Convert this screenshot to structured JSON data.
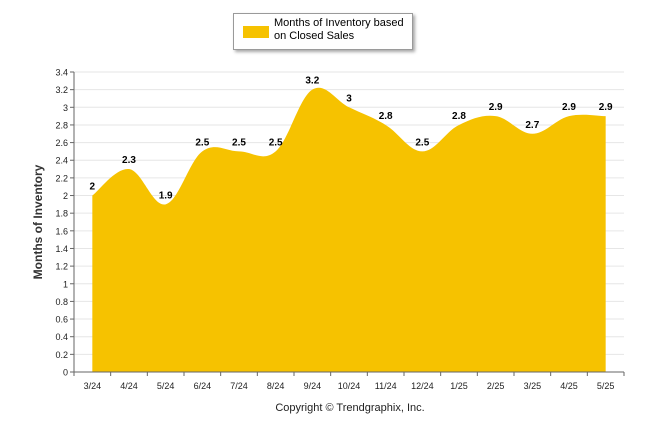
{
  "legend": {
    "label": "Months of Inventory based on Closed Sales"
  },
  "footer": {
    "copyright": "Copyright © Trendgraphix, Inc."
  },
  "colors": {
    "area": "#f6c200",
    "grid": "#e6e6e6",
    "axis": "#666666"
  },
  "chart_data": {
    "type": "area",
    "title": "",
    "xlabel": "",
    "ylabel": "Months of Inventory",
    "ylim": [
      0,
      3.4
    ],
    "ytick_step": 0.2,
    "grid": true,
    "legend_position": "top-center",
    "categories": [
      "3/24",
      "4/24",
      "5/24",
      "6/24",
      "7/24",
      "8/24",
      "9/24",
      "10/24",
      "11/24",
      "12/24",
      "1/25",
      "2/25",
      "3/25",
      "4/25",
      "5/25"
    ],
    "series": [
      {
        "name": "Months of Inventory based on Closed Sales",
        "values": [
          2,
          2.3,
          1.9,
          2.5,
          2.5,
          2.5,
          3.2,
          3,
          2.8,
          2.5,
          2.8,
          2.9,
          2.7,
          2.9,
          2.9
        ]
      }
    ]
  }
}
